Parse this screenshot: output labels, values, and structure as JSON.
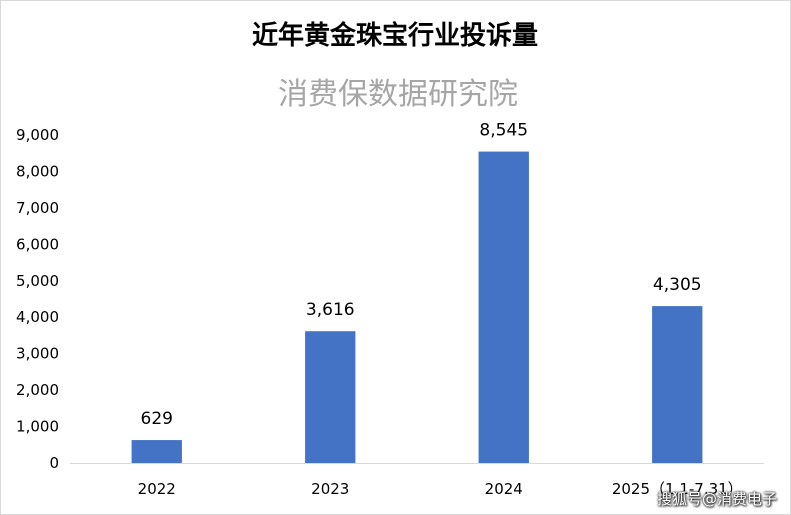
{
  "chart_data": {
    "type": "bar",
    "title": "近年黄金珠宝行业投诉量",
    "subtitle": "消费保数据研究院",
    "categories": [
      "2022",
      "2023",
      "2024",
      "2025（1.1-7.31）"
    ],
    "values": [
      629,
      3616,
      8545,
      4305
    ],
    "value_labels": [
      "629",
      "3,616",
      "8,545",
      "4,305"
    ],
    "ylim": [
      0,
      9000
    ],
    "yticks": [
      0,
      1000,
      2000,
      3000,
      4000,
      5000,
      6000,
      7000,
      8000,
      9000
    ],
    "ytick_labels": [
      "0",
      "1,000",
      "2,000",
      "3,000",
      "4,000",
      "5,000",
      "6,000",
      "7,000",
      "8,000",
      "9,000"
    ],
    "xlabel": "",
    "ylabel": "",
    "grid": false,
    "bar_color": "#4472C4"
  },
  "source_label": "搜狐号@消费电子"
}
